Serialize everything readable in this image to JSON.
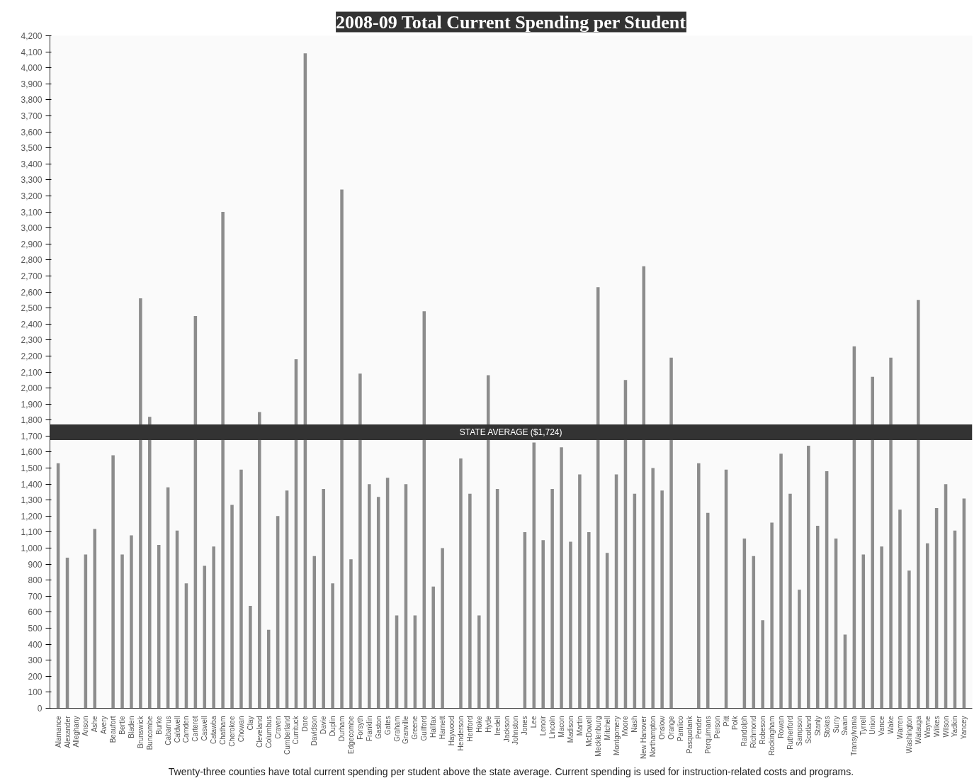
{
  "chart_data": {
    "type": "bar",
    "title": "2008-09 Total Current Spending per Student",
    "categories": [
      "Alamance",
      "Alexander",
      "Alleghany",
      "Anson",
      "Ashe",
      "Avery",
      "Beaufort",
      "Bertie",
      "Bladen",
      "Brunswick",
      "Buncombe",
      "Burke",
      "Cabarrus",
      "Caldwell",
      "Camden",
      "Carteret",
      "Caswell",
      "Catawba",
      "Chatham",
      "Cherokee",
      "Chowan",
      "Clay",
      "Cleveland",
      "Columbus",
      "Craven",
      "Cumberland",
      "Currituck",
      "Dare",
      "Davidson",
      "Davie",
      "Duplin",
      "Durham",
      "Edgecombe",
      "Forsyth",
      "Franklin",
      "Gaston",
      "Gates",
      "Graham",
      "Granville",
      "Greene",
      "Guilford",
      "Halifax",
      "Harnett",
      "Haywood",
      "Henderson",
      "Hertford",
      "Hoke",
      "Hyde",
      "Iredell",
      "Jackson",
      "Johnston",
      "Jones",
      "Lee",
      "Lenoir",
      "Lincoln",
      "Macon",
      "Madison",
      "Martin",
      "McDowell",
      "Mecklenburg",
      "Mitchell",
      "Montgomery",
      "Moore",
      "Nash",
      "New Hanover",
      "Northampton",
      "Onslow",
      "Orange",
      "Pamlico",
      "Pasquotank",
      "Pender",
      "Perquimans",
      "Person",
      "Pitt",
      "Polk",
      "Randolph",
      "Richmond",
      "Robeson",
      "Rockingham",
      "Rowan",
      "Rutherford",
      "Sampson",
      "Scotland",
      "Stanly",
      "Stokes",
      "Surry",
      "Swain",
      "Transylvania",
      "Tyrrell",
      "Union",
      "Vance",
      "Wake",
      "Warren",
      "Washington",
      "Watauga",
      "Wayne",
      "Wilkes",
      "Wilson",
      "Yadkin",
      "Yancey"
    ],
    "values": [
      1530,
      940,
      null,
      960,
      1120,
      null,
      1580,
      960,
      1080,
      2560,
      1820,
      1020,
      1380,
      1110,
      780,
      2450,
      890,
      1010,
      3100,
      1270,
      1490,
      640,
      1850,
      490,
      1200,
      1360,
      2180,
      4090,
      950,
      1370,
      780,
      3240,
      930,
      2090,
      1400,
      1320,
      1440,
      580,
      1400,
      580,
      2480,
      760,
      1000,
      null,
      1560,
      1340,
      580,
      2080,
      1370,
      null,
      null,
      1100,
      1660,
      1050,
      1370,
      1630,
      1040,
      1460,
      1100,
      2630,
      970,
      1460,
      2050,
      1340,
      2760,
      1500,
      1360,
      2190,
      null,
      null,
      1530,
      1220,
      null,
      1490,
      null,
      1060,
      950,
      550,
      1160,
      1590,
      1340,
      740,
      1640,
      1140,
      1480,
      1060,
      460,
      2260,
      960,
      2070,
      1010,
      2190,
      1240,
      860,
      2550,
      1030,
      1250,
      1400,
      1110,
      1310
    ],
    "color": "#8c8c8c",
    "ylim": [
      0,
      4200
    ],
    "yticks": [
      0,
      100,
      200,
      300,
      400,
      500,
      600,
      700,
      800,
      900,
      {
        "value": 1000,
        "label": "1,000"
      },
      {
        "value": 1100,
        "label": "1,100"
      },
      {
        "value": 1200,
        "label": "1,200"
      },
      {
        "value": 1300,
        "label": "1,300"
      },
      {
        "value": 1400,
        "label": "1,400"
      },
      {
        "value": 1500,
        "label": "1,500"
      },
      {
        "value": 1600,
        "label": "1,600"
      },
      {
        "value": 1700,
        "label": "1,700"
      },
      {
        "value": 1800,
        "label": "1,800"
      },
      {
        "value": 1900,
        "label": "1,900"
      },
      {
        "value": 2000,
        "label": "2,000"
      },
      {
        "value": 2100,
        "label": "2,100"
      },
      {
        "value": 2200,
        "label": "2,200"
      },
      {
        "value": 2300,
        "label": "2,300"
      },
      {
        "value": 2400,
        "label": "2,400"
      },
      {
        "value": 2500,
        "label": "2,500"
      },
      {
        "value": 2600,
        "label": "2,600"
      },
      {
        "value": 2700,
        "label": "2,700"
      },
      {
        "value": 2800,
        "label": "2,800"
      },
      {
        "value": 2900,
        "label": "2,900"
      },
      {
        "value": 3000,
        "label": "3,000"
      },
      {
        "value": 3100,
        "label": "3,100"
      },
      {
        "value": 3200,
        "label": "3,200"
      },
      {
        "value": 3300,
        "label": "3,300"
      },
      {
        "value": 3400,
        "label": "3,400"
      },
      {
        "value": 3500,
        "label": "3,500"
      },
      {
        "value": 3600,
        "label": "3,600"
      },
      {
        "value": 3700,
        "label": "3,700"
      },
      {
        "value": 3800,
        "label": "3,800"
      },
      {
        "value": 3900,
        "label": "3,900"
      },
      {
        "value": 4000,
        "label": "4,000"
      },
      {
        "value": 4100,
        "label": "4,100"
      },
      {
        "value": 4200,
        "label": "4,200"
      }
    ],
    "ref_lines": [
      {
        "axis": "y",
        "value": 1724,
        "label": "STATE AVERAGE ($1,724)",
        "color": "#333333"
      }
    ],
    "grid": false,
    "annotations": [
      "Twenty-three counties have total current spending per student above the state average. Current spending is used for instruction-related costs and programs."
    ]
  }
}
